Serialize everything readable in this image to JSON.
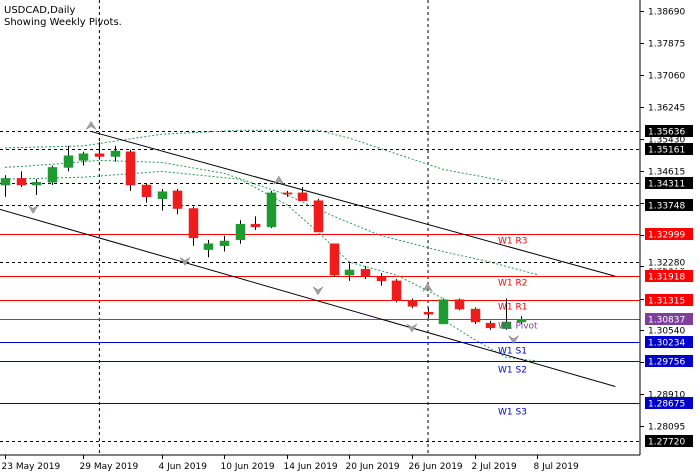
{
  "header": {
    "symbol": "USDCAD,Daily",
    "subtitle": "Showing Weekly Pivots."
  },
  "colors": {
    "background": "#ffffff",
    "bull": "#1f9a32",
    "bear": "#ee1c1c",
    "pivot_resistance": "#ff0000",
    "pivot_support": "#0000cc",
    "pivot_line": "#7f3f9a",
    "envelope": "#2a9a5a",
    "channel": "#000000",
    "grid": "#000000",
    "price_tag_bg": "#000000",
    "price_tag_fg": "#ffffff"
  },
  "chart_data": {
    "type": "candlestick",
    "title": "USDCAD,Daily",
    "subtitle": "Showing Weekly Pivots.",
    "ylim": [
      1.2735,
      1.3898
    ],
    "y_ticks": [
      1.3869,
      1.3787,
      1.3706,
      1.3625,
      1.3543,
      1.3461,
      1.338,
      1.3298,
      1.3217,
      1.3135,
      1.3054,
      1.2972,
      1.2891,
      1.2809
    ],
    "y_tick_labels": [
      "1.38690",
      "1.37875",
      "1.37060",
      "1.36245",
      "1.35430",
      "1.34615",
      "1.33800",
      "1.32985",
      "1.32170",
      "1.31355",
      "1.30540",
      "1.29725",
      "1.28910",
      "1.28095"
    ],
    "x_ticks": [
      {
        "index": 0,
        "label": "23 May 2019"
      },
      {
        "index": 5,
        "label": "29 May 2019"
      },
      {
        "index": 10,
        "label": "4 Jun 2019"
      },
      {
        "index": 14,
        "label": "10 Jun 2019"
      },
      {
        "index": 18,
        "label": "14 Jun 2019"
      },
      {
        "index": 22,
        "label": "20 Jun 2019"
      },
      {
        "index": 26,
        "label": "26 Jun 2019"
      },
      {
        "index": 30,
        "label": "2 Jul 2019"
      },
      {
        "index": 34,
        "label": "8 Jul 2019"
      }
    ],
    "candles": [
      {
        "o": 1.3425,
        "h": 1.345,
        "l": 1.3395,
        "c": 1.3442
      },
      {
        "o": 1.3442,
        "h": 1.346,
        "l": 1.342,
        "c": 1.3425
      },
      {
        "o": 1.3425,
        "h": 1.344,
        "l": 1.34,
        "c": 1.3432
      },
      {
        "o": 1.3432,
        "h": 1.3475,
        "l": 1.3425,
        "c": 1.347
      },
      {
        "o": 1.347,
        "h": 1.3525,
        "l": 1.346,
        "c": 1.35
      },
      {
        "o": 1.3488,
        "h": 1.351,
        "l": 1.3475,
        "c": 1.3505
      },
      {
        "o": 1.3505,
        "h": 1.3535,
        "l": 1.349,
        "c": 1.3498
      },
      {
        "o": 1.3498,
        "h": 1.3525,
        "l": 1.3485,
        "c": 1.3512
      },
      {
        "o": 1.351,
        "h": 1.3515,
        "l": 1.341,
        "c": 1.3425
      },
      {
        "o": 1.3425,
        "h": 1.343,
        "l": 1.338,
        "c": 1.3395
      },
      {
        "o": 1.339,
        "h": 1.3415,
        "l": 1.336,
        "c": 1.3408
      },
      {
        "o": 1.341,
        "h": 1.3415,
        "l": 1.335,
        "c": 1.3365
      },
      {
        "o": 1.3365,
        "h": 1.337,
        "l": 1.327,
        "c": 1.329
      },
      {
        "o": 1.326,
        "h": 1.3285,
        "l": 1.324,
        "c": 1.3275
      },
      {
        "o": 1.327,
        "h": 1.3295,
        "l": 1.3255,
        "c": 1.3282
      },
      {
        "o": 1.3285,
        "h": 1.3335,
        "l": 1.3275,
        "c": 1.3325
      },
      {
        "o": 1.3325,
        "h": 1.3345,
        "l": 1.331,
        "c": 1.3318
      },
      {
        "o": 1.3318,
        "h": 1.341,
        "l": 1.3315,
        "c": 1.3405
      },
      {
        "o": 1.3405,
        "h": 1.341,
        "l": 1.3395,
        "c": 1.3402
      },
      {
        "o": 1.3405,
        "h": 1.342,
        "l": 1.3385,
        "c": 1.3385
      },
      {
        "o": 1.3385,
        "h": 1.339,
        "l": 1.3305,
        "c": 1.3305
      },
      {
        "o": 1.3275,
        "h": 1.3275,
        "l": 1.319,
        "c": 1.3195
      },
      {
        "o": 1.3195,
        "h": 1.3225,
        "l": 1.318,
        "c": 1.3208
      },
      {
        "o": 1.321,
        "h": 1.3218,
        "l": 1.3185,
        "c": 1.3192
      },
      {
        "o": 1.319,
        "h": 1.32,
        "l": 1.3168,
        "c": 1.318
      },
      {
        "o": 1.318,
        "h": 1.3185,
        "l": 1.3125,
        "c": 1.313
      },
      {
        "o": 1.313,
        "h": 1.3135,
        "l": 1.311,
        "c": 1.3115
      },
      {
        "o": 1.31,
        "h": 1.311,
        "l": 1.3085,
        "c": 1.3095
      },
      {
        "o": 1.307,
        "h": 1.3135,
        "l": 1.307,
        "c": 1.3132
      },
      {
        "o": 1.3132,
        "h": 1.3135,
        "l": 1.3105,
        "c": 1.3108
      },
      {
        "o": 1.3108,
        "h": 1.3112,
        "l": 1.307,
        "c": 1.3075
      },
      {
        "o": 1.3072,
        "h": 1.3078,
        "l": 1.3055,
        "c": 1.306
      },
      {
        "o": 1.3058,
        "h": 1.3135,
        "l": 1.3055,
        "c": 1.3075
      },
      {
        "o": 1.3075,
        "h": 1.309,
        "l": 1.307,
        "c": 1.3082
      }
    ],
    "pivot_levels": [
      {
        "label": "W1 R3",
        "value": 1.32999,
        "price_label": "1.32999",
        "kind": "resistance"
      },
      {
        "label": "W1 R2",
        "value": 1.31918,
        "price_label": "1.31918",
        "kind": "resistance"
      },
      {
        "label": "W1 R1",
        "value": 1.31315,
        "price_label": "1.31315",
        "kind": "resistance"
      },
      {
        "label": "W1 Pivot",
        "value": 1.30837,
        "price_label": "1.30837",
        "kind": "pivot"
      },
      {
        "label": "W1 S1",
        "value": 1.30234,
        "price_label": "1.30234",
        "kind": "support"
      },
      {
        "label": "W1 S2",
        "value": 1.29756,
        "price_label": "1.29756",
        "kind": "support"
      },
      {
        "label": "W1 S3",
        "value": 1.28675,
        "price_label": "1.28675",
        "kind": "support"
      }
    ],
    "dashed_levels": [
      {
        "value": 1.35636,
        "price_label": "1.35636"
      },
      {
        "value": 1.35161,
        "price_label": "1.35161"
      },
      {
        "value": 1.34311,
        "price_label": "1.34311"
      },
      {
        "value": 1.33748,
        "price_label": "1.33748"
      },
      {
        "value": 1.3228,
        "price_label": "1.32280",
        "label_bg": false
      },
      {
        "value": 1.2772,
        "price_label": "1.27720"
      }
    ],
    "vertical_dashed_at_index": [
      6,
      27
    ],
    "channel_lines": [
      {
        "x1": 5.5,
        "y1": 1.3562,
        "x2": 39.0,
        "y2": 1.3192
      },
      {
        "x1": -0.5,
        "y1": 1.3365,
        "x2": 39.0,
        "y2": 1.291
      }
    ],
    "envelope_upper": [
      [
        0,
        1.352
      ],
      [
        5,
        1.3525
      ],
      [
        10,
        1.3555
      ],
      [
        15,
        1.3565
      ],
      [
        20,
        1.3565
      ],
      [
        22,
        1.3545
      ],
      [
        25,
        1.3505
      ],
      [
        28,
        1.3465
      ],
      [
        32,
        1.3435
      ]
    ],
    "envelope_lower": [
      [
        0,
        1.344
      ],
      [
        5,
        1.3445
      ],
      [
        10,
        1.346
      ],
      [
        15,
        1.344
      ],
      [
        18,
        1.3375
      ],
      [
        20,
        1.3305
      ],
      [
        22,
        1.3228
      ],
      [
        25,
        1.3195
      ],
      [
        28,
        1.3135
      ]
    ],
    "envelope_inner": [
      [
        0,
        1.347
      ],
      [
        3,
        1.3478
      ],
      [
        6,
        1.3488
      ],
      [
        10,
        1.3483
      ],
      [
        14,
        1.3455
      ],
      [
        18,
        1.34
      ],
      [
        21,
        1.3345
      ],
      [
        24,
        1.3296
      ],
      [
        28,
        1.3255
      ],
      [
        31,
        1.3228
      ],
      [
        34,
        1.3196
      ]
    ],
    "envelope_bottom": [
      [
        28,
        1.308
      ],
      [
        30,
        1.303
      ],
      [
        32,
        1.2985
      ],
      [
        34,
        1.2975
      ]
    ],
    "fractals": [
      {
        "index": 5.5,
        "value": 1.3562,
        "dir": "up"
      },
      {
        "index": 1.8,
        "value": 1.3378,
        "dir": "down"
      },
      {
        "index": 17.5,
        "value": 1.3422,
        "dir": "up"
      },
      {
        "index": 11.5,
        "value": 1.3245,
        "dir": "down"
      },
      {
        "index": 20.0,
        "value": 1.317,
        "dir": "down"
      },
      {
        "index": 27.0,
        "value": 1.3148,
        "dir": "up"
      },
      {
        "index": 26.0,
        "value": 1.3075,
        "dir": "down"
      },
      {
        "index": 32.5,
        "value": 1.3045,
        "dir": "down"
      }
    ]
  }
}
